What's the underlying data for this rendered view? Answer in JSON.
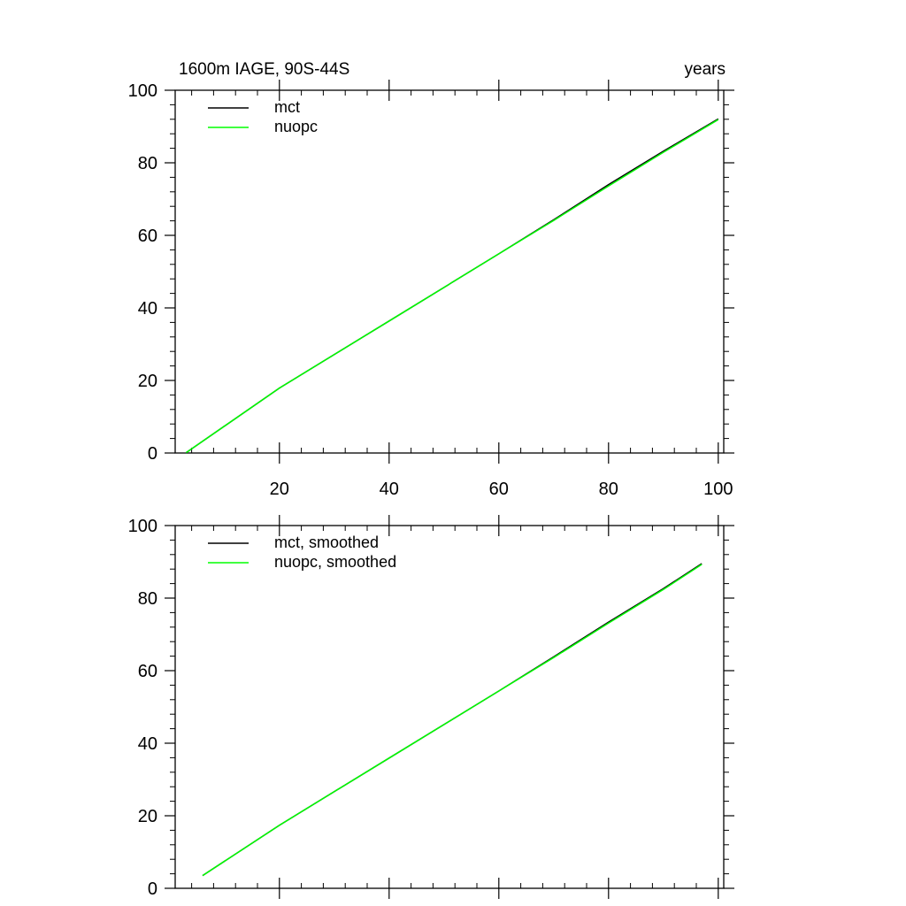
{
  "chart_data": [
    {
      "type": "line",
      "title": "1600m IAGE, 90S-44S",
      "right_title": "years",
      "xlim": [
        1,
        101
      ],
      "ylim": [
        0,
        100
      ],
      "x_major_ticks": [
        20,
        40,
        60,
        80,
        100
      ],
      "x_tick_labels": [
        "20",
        "40",
        "60",
        "80",
        "100"
      ],
      "y_major_ticks": [
        0,
        20,
        40,
        60,
        80,
        100
      ],
      "y_tick_labels": [
        "0",
        "20",
        "40",
        "60",
        "80",
        "100"
      ],
      "legend_position": "top-left",
      "series": [
        {
          "name": "mct",
          "color": "#000000",
          "x": [
            3,
            20,
            40,
            60,
            70,
            80,
            90,
            100
          ],
          "values": [
            0.1,
            17.9,
            36.4,
            54.9,
            64.3,
            74.0,
            83.2,
            92.1
          ]
        },
        {
          "name": "nuopc",
          "color": "#00ff00",
          "x": [
            3,
            20,
            40,
            60,
            70,
            80,
            90,
            100
          ],
          "values": [
            0.1,
            17.9,
            36.4,
            54.9,
            64.1,
            73.6,
            82.9,
            91.9
          ]
        }
      ]
    },
    {
      "type": "line",
      "title": "",
      "xlim": [
        1,
        101
      ],
      "ylim": [
        0,
        100
      ],
      "x_major_ticks": [
        20,
        40,
        60,
        80,
        100
      ],
      "x_tick_labels": [],
      "y_major_ticks": [
        0,
        20,
        40,
        60,
        80,
        100
      ],
      "y_tick_labels": [
        "0",
        "20",
        "40",
        "60",
        "80",
        "100"
      ],
      "legend_position": "top-left",
      "series": [
        {
          "name": "mct, smoothed",
          "color": "#000000",
          "x": [
            6,
            20,
            40,
            60,
            70,
            80,
            90,
            97
          ],
          "values": [
            3.5,
            17.4,
            35.9,
            54.4,
            63.8,
            73.4,
            82.6,
            89.5
          ]
        },
        {
          "name": "nuopc, smoothed",
          "color": "#00ff00",
          "x": [
            6,
            20,
            40,
            60,
            70,
            80,
            90,
            97
          ],
          "values": [
            3.5,
            17.4,
            35.9,
            54.4,
            63.6,
            73.1,
            82.4,
            89.3
          ]
        }
      ]
    }
  ]
}
